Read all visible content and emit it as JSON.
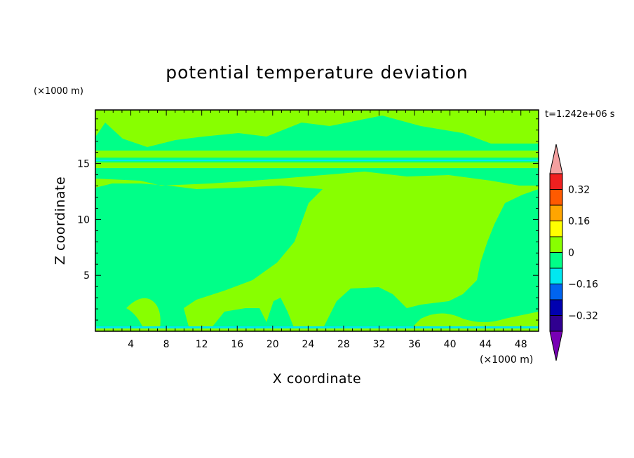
{
  "chart_data": {
    "type": "heatmap",
    "title": "potential temperature deviation",
    "xlabel": "X coordinate",
    "ylabel": "Z coordinate",
    "x_unit": "(×1000 m)",
    "y_unit": "(×1000 m)",
    "time_label": "t=1.242e+06 s",
    "xlim": [
      0,
      50
    ],
    "ylim": [
      0,
      19.8
    ],
    "x_ticks": [
      4,
      8,
      12,
      16,
      20,
      24,
      28,
      32,
      36,
      40,
      44,
      48
    ],
    "y_ticks": [
      5,
      10,
      15
    ],
    "colorbar": {
      "levels": [
        {
          "min": 0.4,
          "max": null,
          "color": "#f4a0a0"
        },
        {
          "min": 0.32,
          "max": 0.4,
          "color": "#f02020"
        },
        {
          "min": 0.24,
          "max": 0.32,
          "color": "#ff5a00"
        },
        {
          "min": 0.16,
          "max": 0.24,
          "color": "#ffa500"
        },
        {
          "min": 0.08,
          "max": 0.16,
          "color": "#ffff00"
        },
        {
          "min": 0,
          "max": 0.08,
          "color": "#88ff00"
        },
        {
          "min": -0.08,
          "max": 0,
          "color": "#00ff88"
        },
        {
          "min": -0.16,
          "max": -0.08,
          "color": "#00e8f0"
        },
        {
          "min": -0.24,
          "max": -0.16,
          "color": "#0064f0"
        },
        {
          "min": -0.32,
          "max": -0.24,
          "color": "#0000b0"
        },
        {
          "min": -0.4,
          "max": -0.32,
          "color": "#300090"
        },
        {
          "min": null,
          "max": -0.4,
          "color": "#7800b4"
        }
      ],
      "tick_labels": [
        "0.32",
        "0.16",
        "0",
        "−0.16",
        "−0.32"
      ]
    }
  }
}
